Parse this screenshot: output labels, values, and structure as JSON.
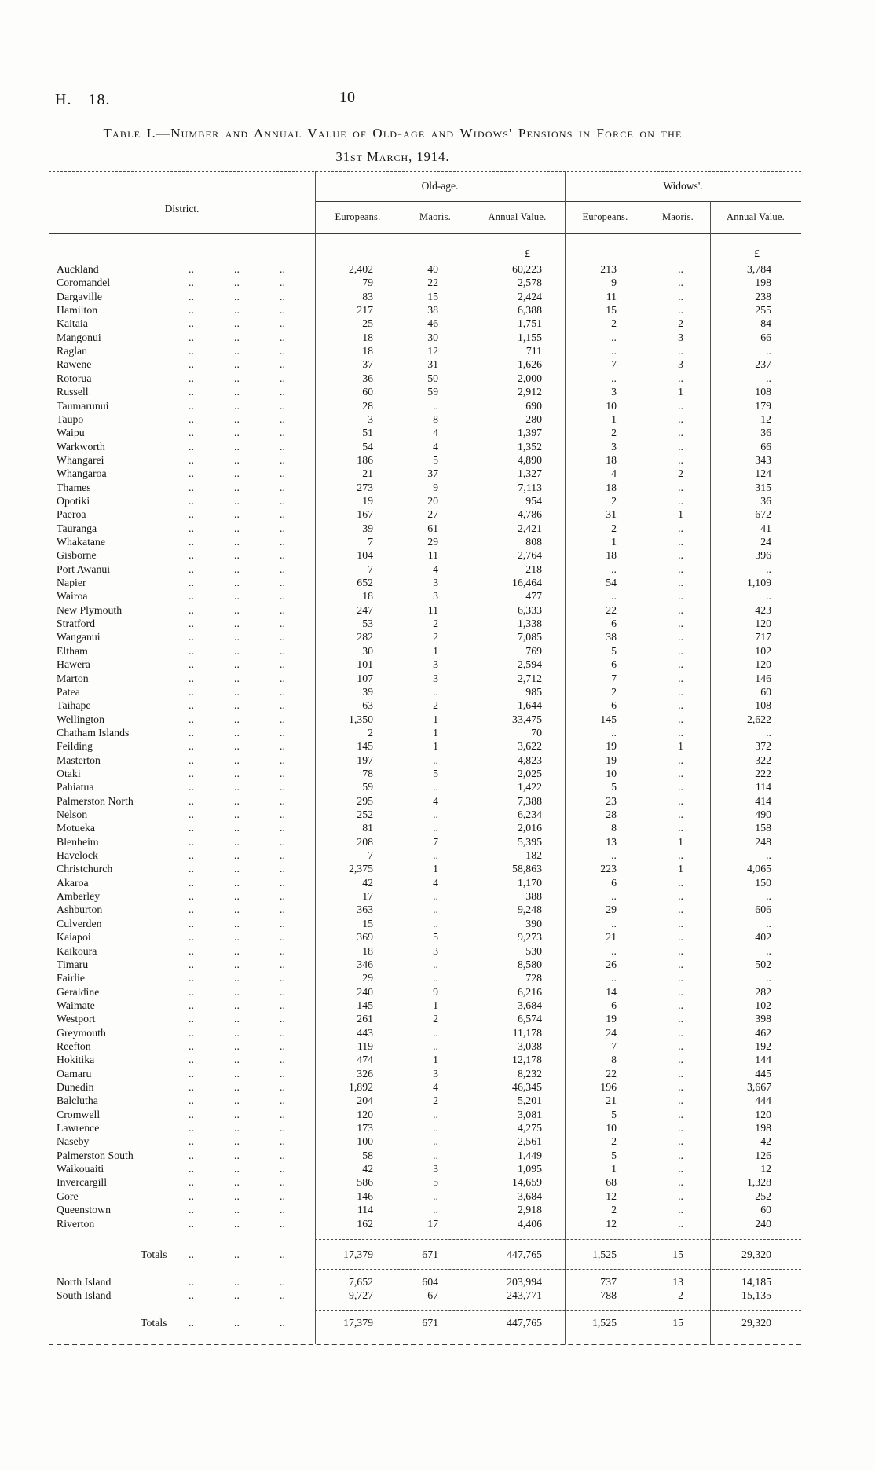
{
  "page": {
    "doc_ref": "H.—18.",
    "page_number": "10",
    "title_line1": "Table I.—Number and Annual Value of Old-age and Widows' Pensions in Force on the",
    "title_line2": "31st March, 1914."
  },
  "table": {
    "district_header": "District.",
    "leader": "..",
    "currency_symbol": "£",
    "groups": [
      {
        "label": "Old-age.",
        "columns": [
          "Europeans.",
          "Maoris.",
          "Annual Value."
        ]
      },
      {
        "label": "Widows'.",
        "columns": [
          "Europeans.",
          "Maoris.",
          "Annual Value."
        ]
      }
    ],
    "rows": [
      [
        "Auckland",
        "2,402",
        "40",
        "60,223",
        "213",
        "..",
        "3,784"
      ],
      [
        "Coromandel",
        "79",
        "22",
        "2,578",
        "9",
        "..",
        "198"
      ],
      [
        "Dargaville",
        "83",
        "15",
        "2,424",
        "11",
        "..",
        "238"
      ],
      [
        "Hamilton",
        "217",
        "38",
        "6,388",
        "15",
        "..",
        "255"
      ],
      [
        "Kaitaia",
        "25",
        "46",
        "1,751",
        "2",
        "2",
        "84"
      ],
      [
        "Mangonui",
        "18",
        "30",
        "1,155",
        "..",
        "3",
        "66"
      ],
      [
        "Raglan",
        "18",
        "12",
        "711",
        "..",
        "..",
        ".."
      ],
      [
        "Rawene",
        "37",
        "31",
        "1,626",
        "7",
        "3",
        "237"
      ],
      [
        "Rotorua",
        "36",
        "50",
        "2,000",
        "..",
        "..",
        ".."
      ],
      [
        "Russell",
        "60",
        "59",
        "2,912",
        "3",
        "1",
        "108"
      ],
      [
        "Taumarunui",
        "28",
        "..",
        "690",
        "10",
        "..",
        "179"
      ],
      [
        "Taupo",
        "3",
        "8",
        "280",
        "1",
        "..",
        "12"
      ],
      [
        "Waipu",
        "51",
        "4",
        "1,397",
        "2",
        "..",
        "36"
      ],
      [
        "Warkworth",
        "54",
        "4",
        "1,352",
        "3",
        "..",
        "66"
      ],
      [
        "Whangarei",
        "186",
        "5",
        "4,890",
        "18",
        "..",
        "343"
      ],
      [
        "Whangaroa",
        "21",
        "37",
        "1,327",
        "4",
        "2",
        "124"
      ],
      [
        "Thames",
        "273",
        "9",
        "7,113",
        "18",
        "..",
        "315"
      ],
      [
        "Opotiki",
        "19",
        "20",
        "954",
        "2",
        "..",
        "36"
      ],
      [
        "Paeroa",
        "167",
        "27",
        "4,786",
        "31",
        "1",
        "672"
      ],
      [
        "Tauranga",
        "39",
        "61",
        "2,421",
        "2",
        "..",
        "41"
      ],
      [
        "Whakatane",
        "7",
        "29",
        "808",
        "1",
        "..",
        "24"
      ],
      [
        "Gisborne",
        "104",
        "11",
        "2,764",
        "18",
        "..",
        "396"
      ],
      [
        "Port Awanui",
        "7",
        "4",
        "218",
        "..",
        "..",
        ".."
      ],
      [
        "Napier",
        "652",
        "3",
        "16,464",
        "54",
        "..",
        "1,109"
      ],
      [
        "Wairoa",
        "18",
        "3",
        "477",
        "..",
        "..",
        ".."
      ],
      [
        "New Plymouth",
        "247",
        "11",
        "6,333",
        "22",
        "..",
        "423"
      ],
      [
        "Stratford",
        "53",
        "2",
        "1,338",
        "6",
        "..",
        "120"
      ],
      [
        "Wanganui",
        "282",
        "2",
        "7,085",
        "38",
        "..",
        "717"
      ],
      [
        "Eltham",
        "30",
        "1",
        "769",
        "5",
        "..",
        "102"
      ],
      [
        "Hawera",
        "101",
        "3",
        "2,594",
        "6",
        "..",
        "120"
      ],
      [
        "Marton",
        "107",
        "3",
        "2,712",
        "7",
        "..",
        "146"
      ],
      [
        "Patea",
        "39",
        "..",
        "985",
        "2",
        "..",
        "60"
      ],
      [
        "Taihape",
        "63",
        "2",
        "1,644",
        "6",
        "..",
        "108"
      ],
      [
        "Wellington",
        "1,350",
        "1",
        "33,475",
        "145",
        "..",
        "2,622"
      ],
      [
        "Chatham Islands",
        "2",
        "1",
        "70",
        "..",
        "..",
        ".."
      ],
      [
        "Feilding",
        "145",
        "1",
        "3,622",
        "19",
        "1",
        "372"
      ],
      [
        "Masterton",
        "197",
        "..",
        "4,823",
        "19",
        "..",
        "322"
      ],
      [
        "Otaki",
        "78",
        "5",
        "2,025",
        "10",
        "..",
        "222"
      ],
      [
        "Pahiatua",
        "59",
        "..",
        "1,422",
        "5",
        "..",
        "114"
      ],
      [
        "Palmerston North",
        "295",
        "4",
        "7,388",
        "23",
        "..",
        "414"
      ],
      [
        "Nelson",
        "252",
        "..",
        "6,234",
        "28",
        "..",
        "490"
      ],
      [
        "Motueka",
        "81",
        "..",
        "2,016",
        "8",
        "..",
        "158"
      ],
      [
        "Blenheim",
        "208",
        "7",
        "5,395",
        "13",
        "1",
        "248"
      ],
      [
        "Havelock",
        "7",
        "..",
        "182",
        "..",
        "..",
        ".."
      ],
      [
        "Christchurch",
        "2,375",
        "1",
        "58,863",
        "223",
        "1",
        "4,065"
      ],
      [
        "Akaroa",
        "42",
        "4",
        "1,170",
        "6",
        "..",
        "150"
      ],
      [
        "Amberley",
        "17",
        "..",
        "388",
        "..",
        "..",
        ".."
      ],
      [
        "Ashburton",
        "363",
        "..",
        "9,248",
        "29",
        "..",
        "606"
      ],
      [
        "Culverden",
        "15",
        "..",
        "390",
        "..",
        "..",
        ".."
      ],
      [
        "Kaiapoi",
        "369",
        "5",
        "9,273",
        "21",
        "..",
        "402"
      ],
      [
        "Kaikoura",
        "18",
        "3",
        "530",
        "..",
        "..",
        ".."
      ],
      [
        "Timaru",
        "346",
        "..",
        "8,580",
        "26",
        "..",
        "502"
      ],
      [
        "Fairlie",
        "29",
        "..",
        "728",
        "..",
        "..",
        ".."
      ],
      [
        "Geraldine",
        "240",
        "9",
        "6,216",
        "14",
        "..",
        "282"
      ],
      [
        "Waimate",
        "145",
        "1",
        "3,684",
        "6",
        "..",
        "102"
      ],
      [
        "Westport",
        "261",
        "2",
        "6,574",
        "19",
        "..",
        "398"
      ],
      [
        "Greymouth",
        "443",
        "..",
        "11,178",
        "24",
        "..",
        "462"
      ],
      [
        "Reefton",
        "119",
        "..",
        "3,038",
        "7",
        "..",
        "192"
      ],
      [
        "Hokitika",
        "474",
        "1",
        "12,178",
        "8",
        "..",
        "144"
      ],
      [
        "Oamaru",
        "326",
        "3",
        "8,232",
        "22",
        "..",
        "445"
      ],
      [
        "Dunedin",
        "1,892",
        "4",
        "46,345",
        "196",
        "..",
        "3,667"
      ],
      [
        "Balclutha",
        "204",
        "2",
        "5,201",
        "21",
        "..",
        "444"
      ],
      [
        "Cromwell",
        "120",
        "..",
        "3,081",
        "5",
        "..",
        "120"
      ],
      [
        "Lawrence",
        "173",
        "..",
        "4,275",
        "10",
        "..",
        "198"
      ],
      [
        "Naseby",
        "100",
        "..",
        "2,561",
        "2",
        "..",
        "42"
      ],
      [
        "Palmerston South",
        "58",
        "..",
        "1,449",
        "5",
        "..",
        "126"
      ],
      [
        "Waikouaiti",
        "42",
        "3",
        "1,095",
        "1",
        "..",
        "12"
      ],
      [
        "Invercargill",
        "586",
        "5",
        "14,659",
        "68",
        "..",
        "1,328"
      ],
      [
        "Gore",
        "146",
        "..",
        "3,684",
        "12",
        "..",
        "252"
      ],
      [
        "Queenstown",
        "114",
        "..",
        "2,918",
        "2",
        "..",
        "60"
      ],
      [
        "Riverton",
        "162",
        "17",
        "4,406",
        "12",
        "..",
        "240"
      ]
    ],
    "totals_label": "Totals",
    "totals": [
      "17,379",
      "671",
      "447,765",
      "1,525",
      "15",
      "29,320"
    ],
    "islands": [
      [
        "North Island",
        "7,652",
        "604",
        "203,994",
        "737",
        "13",
        "14,185"
      ],
      [
        "South Island",
        "9,727",
        "67",
        "243,771",
        "788",
        "2",
        "15,135"
      ]
    ],
    "grand_totals": [
      "17,379",
      "671",
      "447,765",
      "1,525",
      "15",
      "29,320"
    ]
  }
}
